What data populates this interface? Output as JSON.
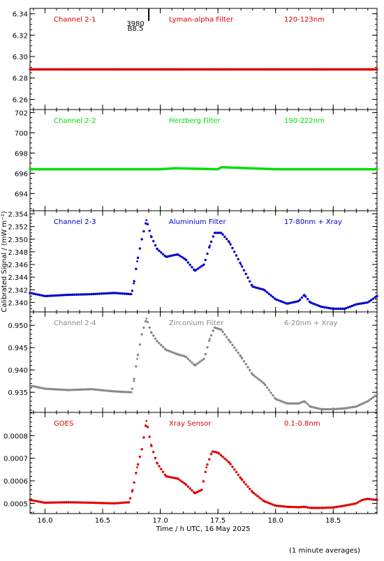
{
  "figure": {
    "ylabel": "Calibrated Signal / (mW m⁻²)",
    "xlabel": "Time / h UTC, 16 May 2025",
    "footnote": "(1 minute averages)",
    "marker_top": "3980",
    "marker_bottom": "B8.5"
  },
  "chart_data": [
    {
      "type": "scatter",
      "channel_label": "Channel 2-1",
      "filter_label": "Lyman-alpha Filter",
      "band_label": "120-123nm",
      "color": "#dd0000",
      "ylim": [
        6.2505,
        6.345
      ],
      "yticks": [
        6.26,
        6.28,
        6.3,
        6.32,
        6.34
      ],
      "tick_decimals": 2,
      "x": [
        15.87,
        18.88
      ],
      "y": [
        6.288,
        6.288
      ]
    },
    {
      "type": "scatter",
      "channel_label": "Channel 2-2",
      "filter_label": "Herzberg Filter",
      "band_label": "190-222nm",
      "color": "#00dd00",
      "ylim": [
        692.3,
        702.3
      ],
      "yticks": [
        694,
        696,
        698,
        700,
        702
      ],
      "tick_decimals": 0,
      "x": [
        15.87,
        16.5,
        17.0,
        17.13,
        17.5,
        17.53,
        18.0,
        18.88
      ],
      "y": [
        696.4,
        696.4,
        696.4,
        696.5,
        696.4,
        696.6,
        696.4,
        696.4
      ]
    },
    {
      "type": "scatter",
      "channel_label": "Channel 2-3",
      "filter_label": "Aluminium Filter",
      "band_label": "17-80nm + Xray",
      "color": "#0000cc",
      "ylim": [
        2.3385,
        2.3545
      ],
      "yticks": [
        2.34,
        2.342,
        2.344,
        2.346,
        2.348,
        2.35,
        2.352,
        2.354
      ],
      "tick_decimals": 3,
      "x": [
        15.87,
        16.0,
        16.2,
        16.4,
        16.6,
        16.75,
        16.77,
        16.8,
        16.84,
        16.88,
        16.92,
        16.97,
        17.05,
        17.15,
        17.22,
        17.3,
        17.38,
        17.43,
        17.47,
        17.53,
        17.6,
        17.7,
        17.8,
        17.9,
        18.0,
        18.1,
        18.2,
        18.25,
        18.3,
        18.4,
        18.5,
        18.6,
        18.7,
        18.8,
        18.88
      ],
      "y": [
        2.3415,
        2.341,
        2.3412,
        2.3413,
        2.3415,
        2.3413,
        2.343,
        2.3465,
        2.35,
        2.353,
        2.3505,
        2.3485,
        2.3472,
        2.3476,
        2.3468,
        2.345,
        2.346,
        2.349,
        2.351,
        2.351,
        2.3495,
        2.346,
        2.3425,
        2.342,
        2.3405,
        2.3398,
        2.3402,
        2.3412,
        2.34,
        2.3393,
        2.339,
        2.339,
        2.3397,
        2.34,
        2.341
      ]
    },
    {
      "type": "scatter",
      "channel_label": "Channel 2-4",
      "filter_label": "Zirconium Filter",
      "band_label": "6-20nm + Xray",
      "color": "#888888",
      "ylim": [
        0.9305,
        0.953
      ],
      "yticks": [
        0.935,
        0.94,
        0.945,
        0.95
      ],
      "tick_decimals": 3,
      "x": [
        15.87,
        16.0,
        16.2,
        16.4,
        16.6,
        16.75,
        16.77,
        16.8,
        16.84,
        16.88,
        16.92,
        16.97,
        17.05,
        17.15,
        17.22,
        17.3,
        17.38,
        17.43,
        17.47,
        17.53,
        17.6,
        17.7,
        17.8,
        17.9,
        18.0,
        18.1,
        18.2,
        18.25,
        18.3,
        18.4,
        18.5,
        18.6,
        18.7,
        18.8,
        18.88
      ],
      "y": [
        0.9365,
        0.9358,
        0.9355,
        0.9357,
        0.9352,
        0.935,
        0.9375,
        0.9425,
        0.948,
        0.9515,
        0.9485,
        0.9465,
        0.9445,
        0.9435,
        0.943,
        0.941,
        0.9425,
        0.947,
        0.9495,
        0.949,
        0.9465,
        0.943,
        0.939,
        0.937,
        0.9335,
        0.9325,
        0.9325,
        0.933,
        0.9318,
        0.9312,
        0.9312,
        0.9314,
        0.9318,
        0.933,
        0.9345
      ]
    },
    {
      "type": "scatter",
      "channel_label": "GOES",
      "filter_label": "Xray Sensor",
      "band_label": "0.1-0.8nm",
      "color": "#dd0000",
      "ylim": [
        0.000455,
        0.000903
      ],
      "yticks": [
        0.0005,
        0.0006,
        0.0007,
        0.0008
      ],
      "tick_decimals": 4,
      "x": [
        15.87,
        16.0,
        16.2,
        16.4,
        16.6,
        16.73,
        16.76,
        16.8,
        16.84,
        16.88,
        16.92,
        16.97,
        17.05,
        17.15,
        17.22,
        17.3,
        17.36,
        17.4,
        17.45,
        17.5,
        17.6,
        17.7,
        17.8,
        17.9,
        18.0,
        18.1,
        18.2,
        18.25,
        18.3,
        18.4,
        18.5,
        18.6,
        18.7,
        18.75,
        18.8,
        18.88
      ],
      "y": [
        0.000515,
        0.000503,
        0.000505,
        0.000503,
        0.0005,
        0.000505,
        0.00056,
        0.00066,
        0.00074,
        0.000865,
        0.00076,
        0.00068,
        0.00062,
        0.00061,
        0.000585,
        0.000545,
        0.00056,
        0.00066,
        0.00073,
        0.000725,
        0.00068,
        0.00061,
        0.00055,
        0.00051,
        0.00049,
        0.000485,
        0.000483,
        0.000485,
        0.00048,
        0.00048,
        0.000482,
        0.00049,
        0.0005,
        0.000515,
        0.00052,
        0.000515
      ]
    }
  ],
  "x_axis": {
    "xlim": [
      15.87,
      18.88
    ],
    "ticks": [
      16.0,
      16.5,
      17.0,
      17.5,
      18.0,
      18.5
    ],
    "tick_labels": [
      "16.0",
      "16.5",
      "17.0",
      "17.5",
      "18.0",
      "18.5"
    ]
  },
  "event_marker_time": 16.9
}
